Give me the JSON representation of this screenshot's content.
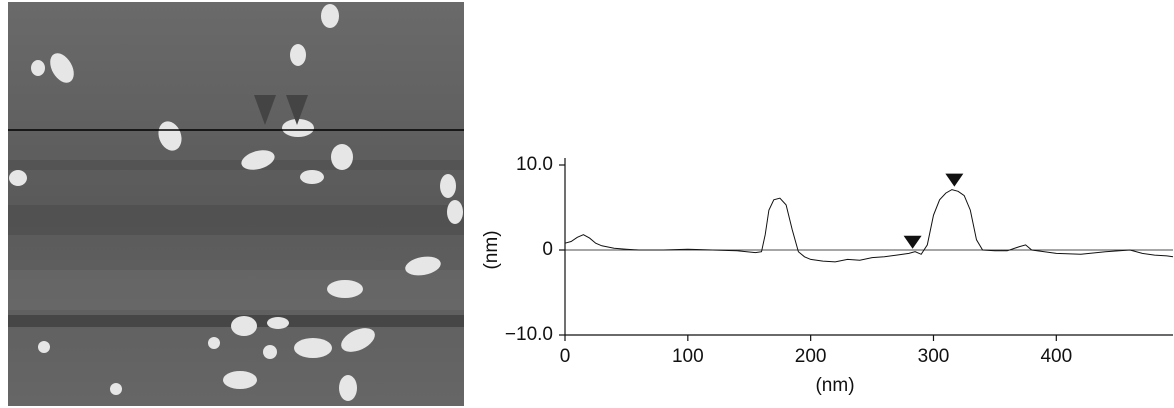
{
  "chart_data": {
    "type": "line",
    "x_label": "(nm)",
    "y_label": "(nm)",
    "xlim": [
      0,
      495
    ],
    "ylim": [
      -10,
      10
    ],
    "xticks": [
      0,
      100,
      200,
      300,
      400
    ],
    "yticks": [
      {
        "value": 10,
        "label": "10.0"
      },
      0,
      {
        "value": -10,
        "label": "−10.0"
      }
    ],
    "zero_line": true,
    "series": [
      {
        "color": "#111111",
        "x": [
          0,
          5,
          10,
          15,
          20,
          25,
          30,
          40,
          50,
          60,
          80,
          100,
          120,
          140,
          155,
          160,
          163,
          166,
          170,
          175,
          180,
          185,
          190,
          195,
          200,
          210,
          220,
          230,
          240,
          250,
          260,
          270,
          280,
          285,
          290,
          295,
          300,
          305,
          310,
          315,
          320,
          325,
          330,
          335,
          340,
          350,
          360,
          370,
          375,
          380,
          400,
          420,
          440,
          460,
          470,
          480,
          490,
          495
        ],
        "values": [
          0.8,
          1.0,
          1.5,
          1.8,
          1.4,
          0.8,
          0.5,
          0.2,
          0.1,
          0,
          0,
          0.1,
          0,
          -0.1,
          -0.3,
          -0.2,
          1.8,
          4.7,
          5.9,
          6.1,
          5.3,
          2.4,
          -0.2,
          -0.8,
          -1.1,
          -1.3,
          -1.4,
          -1.1,
          -1.2,
          -0.9,
          -0.8,
          -0.6,
          -0.4,
          -0.2,
          -0.5,
          0.6,
          4.1,
          5.9,
          6.7,
          7.1,
          6.9,
          6.4,
          4.7,
          1.2,
          0,
          -0.1,
          -0.1,
          0.4,
          0.6,
          0,
          -0.4,
          -0.5,
          -0.2,
          0,
          -0.4,
          -0.6,
          -0.7,
          -0.8
        ]
      }
    ],
    "markers": {
      "color": "#111111",
      "x": [
        283,
        317
      ],
      "values": [
        -0.2,
        7.1
      ]
    }
  }
}
